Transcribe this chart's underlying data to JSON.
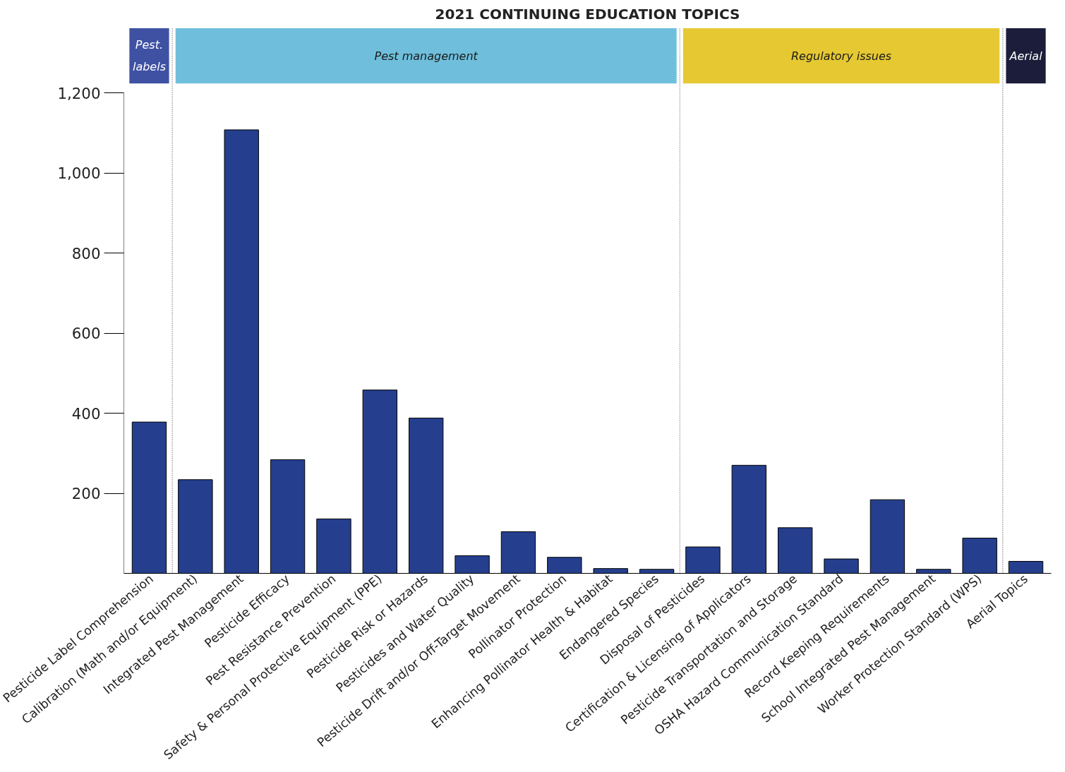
{
  "chart_data": {
    "type": "bar",
    "title": "2021 CONTINUING EDUCATION TOPICS",
    "categories": [
      "Pesticide Label Comprehension",
      "Calibration (Math and/or Equipment)",
      "Integrated Pest Management",
      "Pesticide Efficacy",
      "Pest Resistance Prevention",
      "Safety & Personal Protective Equipment (PPE)",
      "Pesticide Risk or Hazards",
      "Pesticides and Water Quality",
      "Pesticide Drift and/or Off-Target Movement",
      "Pollinator Protection",
      "Enhancing Pollinator Health & Habitat",
      "Endangered Species",
      "Disposal of Pesticides",
      "Certification & Licensing of Applicators",
      "Pesticide Transportation and Storage",
      "OSHA Hazard Communication Standard",
      "Record Keeping Requirements",
      "School Integrated Pest Management",
      "Worker Protection Standard (WPS)",
      "Aerial Topics"
    ],
    "values": [
      378,
      234,
      1108,
      284,
      136,
      458,
      388,
      44,
      104,
      40,
      12,
      10,
      66,
      270,
      114,
      36,
      184,
      10,
      88,
      30
    ],
    "color": "#253f8e",
    "ylim": [
      0,
      1200
    ],
    "yticks": [
      {
        "value": 200,
        "label": "200"
      },
      {
        "value": 400,
        "label": "400"
      },
      {
        "value": 600,
        "label": "600"
      },
      {
        "value": 800,
        "label": "800"
      },
      {
        "value": 1000,
        "label": "1,000"
      },
      {
        "value": 1200,
        "label": "1,200"
      }
    ],
    "grid": false,
    "annotations": [
      "Pest.\nlabels",
      "Pest management",
      "Regulatory issues",
      "Aerial"
    ]
  }
}
